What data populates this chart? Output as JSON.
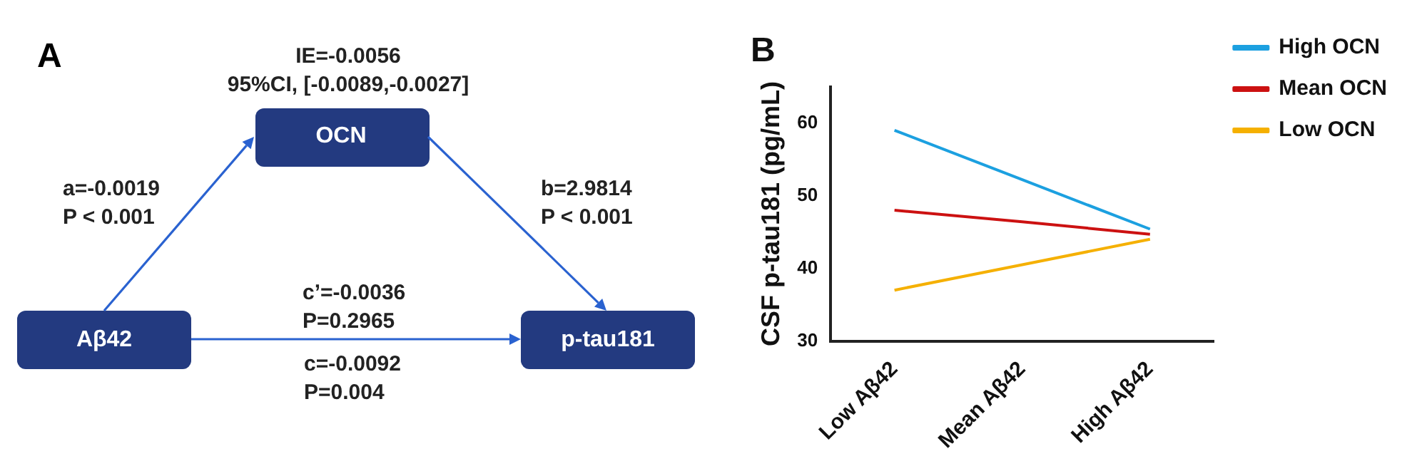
{
  "chart_data": [
    {
      "type": "other",
      "title": "A",
      "annotations": [
        "IE=-0.0056",
        "95%CI, [-0.0089,-0.0027]",
        "OCN",
        "a=-0.0019",
        "P < 0.001",
        "b=2.9814",
        "P < 0.001",
        "Aβ42",
        "c’=-0.0036",
        "P=0.2965",
        "p-tau181",
        "c=-0.0092",
        "P=0.004"
      ]
    },
    {
      "type": "line",
      "title": "B",
      "categories": [
        "Low Aβ42",
        "Mean Aβ42",
        "High Aβ42"
      ],
      "ylabel": "CSF p-tau181 (pg/mL)",
      "ylim": [
        30,
        65
      ],
      "yticks": [
        30,
        40,
        50,
        60
      ],
      "legend": "top right",
      "marker": "none",
      "series": [
        {
          "name": "High OCN",
          "color": "#1ca0e0",
          "values": [
            59,
            52.2,
            45.4
          ]
        },
        {
          "name": "Mean OCN",
          "color": "#cc1111",
          "values": [
            48,
            46.4,
            44.7
          ]
        },
        {
          "name": "Low OCN",
          "color": "#f5b000",
          "values": [
            37,
            40.5,
            44
          ]
        }
      ]
    }
  ]
}
